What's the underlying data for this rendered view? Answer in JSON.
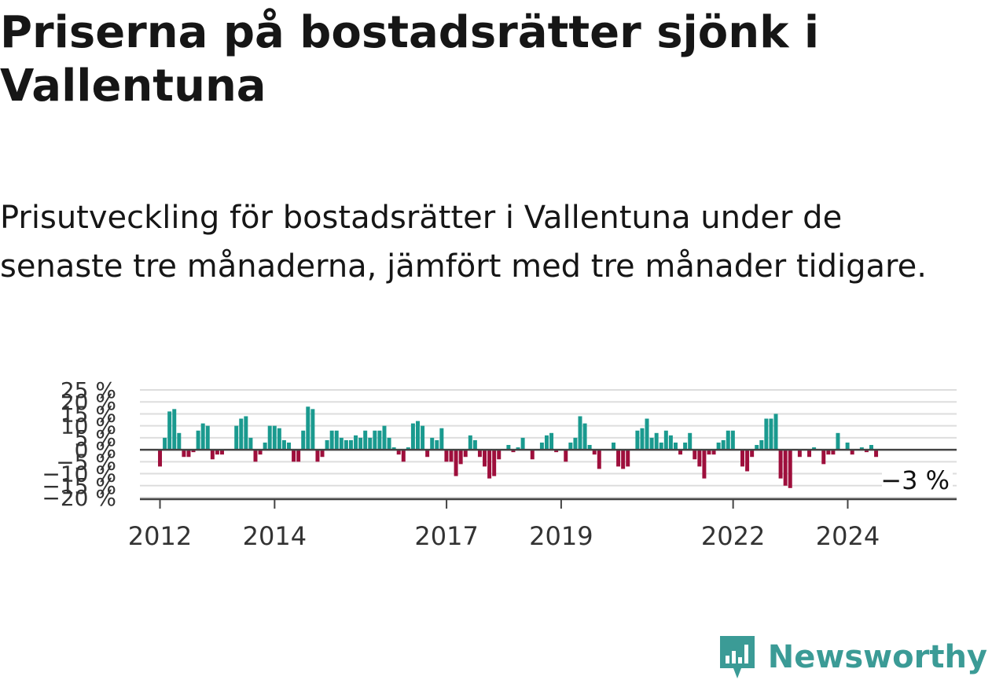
{
  "title": "Priserna på bostadsrätter sjönk i Vallentuna",
  "subtitle": "Prisutveckling för bostadsrätter i Vallentuna under de senaste tre månaderna, jämfört med tre månader tidigare.",
  "brand": {
    "name": "Newsworthy",
    "icon": "newsworthy-logo-icon"
  },
  "colors": {
    "positive": "#1a9a8f",
    "negative": "#9e0f3c",
    "grid": "#dddddd",
    "zero": "#444444",
    "brand": "#3b9b96"
  },
  "chart_data": {
    "type": "bar",
    "ylim": [
      -20,
      25
    ],
    "ytick_values": [
      -20,
      -15,
      -10,
      -5,
      0,
      5,
      10,
      15,
      20,
      25
    ],
    "ytick_labels": [
      "−20 %",
      "−15 %",
      "−10 %",
      "−5 %",
      "0 %",
      "5 %",
      "10 %",
      "15 %",
      "20 %",
      "25 %"
    ],
    "xtick_values": [
      2012,
      2014,
      2017,
      2019,
      2022,
      2024
    ],
    "xtick_labels": [
      "2012",
      "2014",
      "2017",
      "2019",
      "2022",
      "2024"
    ],
    "annotation": "−3 %",
    "grid": true,
    "x_start": 2012,
    "x_step": 0.0833,
    "values": [
      -7,
      5,
      16,
      17,
      7,
      -3,
      -3,
      -1,
      8,
      11,
      10,
      -4,
      -2,
      -2,
      0,
      0,
      10,
      13,
      14,
      5,
      -5,
      -2,
      3,
      10,
      10,
      9,
      4,
      3,
      -5,
      -5,
      8,
      18,
      17,
      -5,
      -3,
      4,
      8,
      8,
      5,
      4,
      4,
      6,
      5,
      8,
      5,
      8,
      8,
      10,
      5,
      1,
      -2,
      -5,
      1,
      11,
      12,
      10,
      -3,
      5,
      4,
      9,
      -5,
      -5,
      -11,
      -6,
      -3,
      6,
      4,
      -3,
      -7,
      -12,
      -11,
      -4,
      0,
      2,
      -1,
      1,
      5,
      0,
      -4,
      0,
      3,
      6,
      7,
      -1,
      0,
      -5,
      3,
      5,
      14,
      11,
      2,
      -2,
      -8,
      0,
      0,
      3,
      -7,
      -8,
      -7,
      0,
      8,
      9,
      13,
      5,
      7,
      3,
      8,
      6,
      3,
      -2,
      3,
      7,
      -4,
      -7,
      -12,
      -2,
      -2,
      3,
      4,
      8,
      8,
      0,
      -7,
      -9,
      -3,
      2,
      4,
      13,
      13,
      15,
      -12,
      -15,
      -16,
      0,
      -3,
      0,
      -3,
      1,
      0,
      -6,
      -2,
      -2,
      7,
      0,
      3,
      -2,
      0,
      1,
      -1,
      2,
      -3
    ]
  }
}
